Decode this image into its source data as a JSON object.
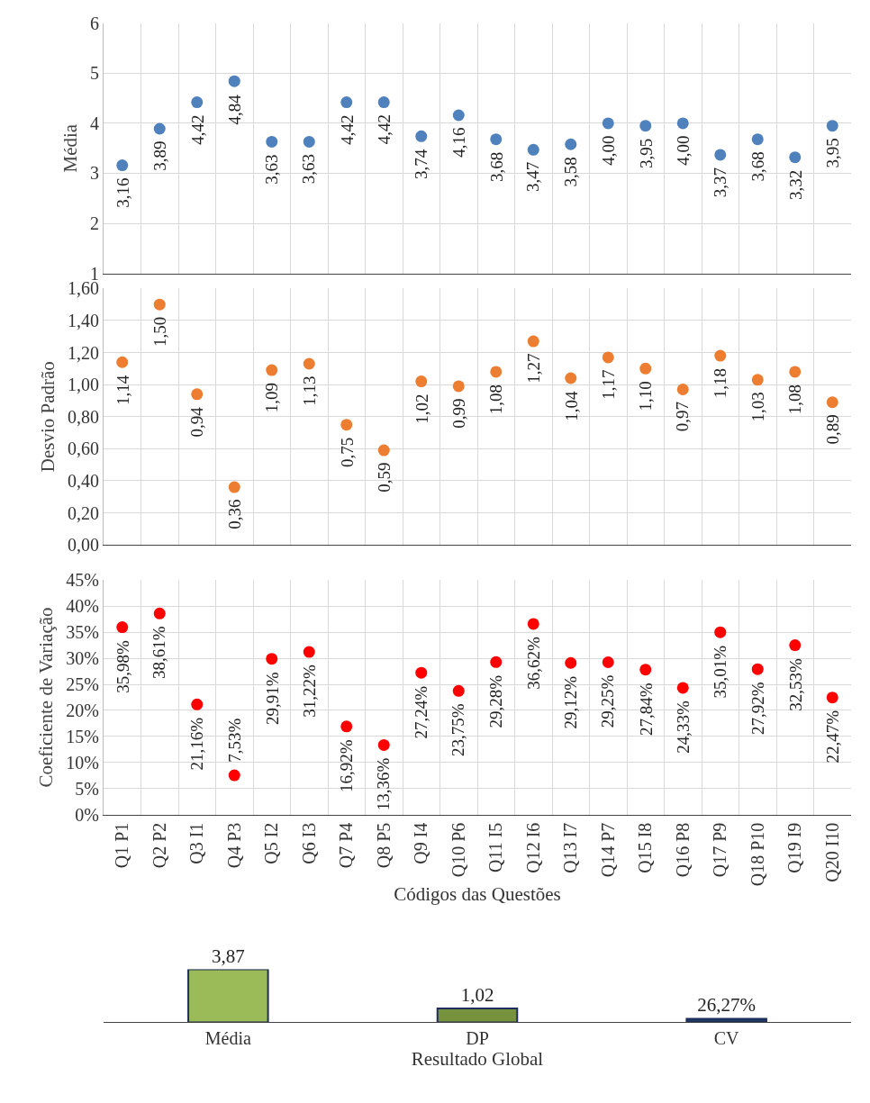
{
  "chart_data": [
    {
      "type": "scatter",
      "ylabel": "Média",
      "categories": [
        "Q1 P1",
        "Q2 P2",
        "Q3 I1",
        "Q4 P3",
        "Q5 I2",
        "Q6 I3",
        "Q7 P4",
        "Q8 P5",
        "Q9 I4",
        "Q10 P6",
        "Q11 I5",
        "Q12 I6",
        "Q13 I7",
        "Q14 P7",
        "Q15 I8",
        "Q16 P8",
        "Q17 P9",
        "Q18 P10",
        "Q19 I9",
        "Q20 I10"
      ],
      "series": [
        {
          "color": "#4f81bd",
          "values": [
            3.16,
            3.89,
            4.42,
            4.84,
            3.63,
            3.63,
            4.42,
            4.42,
            3.74,
            4.16,
            3.68,
            3.47,
            3.58,
            4.0,
            3.95,
            4.0,
            3.37,
            3.68,
            3.32,
            3.95
          ],
          "value_labels": [
            "3,16",
            "3,89",
            "4,42",
            "4,84",
            "3,63",
            "3,63",
            "4,42",
            "4,42",
            "3,74",
            "4,16",
            "3,68",
            "3,47",
            "3,58",
            "4,00",
            "3,95",
            "4,00",
            "3,37",
            "3,68",
            "3,32",
            "3,95"
          ]
        }
      ],
      "ylim": [
        1,
        6
      ],
      "yticks": [
        1,
        2,
        3,
        4,
        5,
        6
      ],
      "grid": true,
      "marker": "circle",
      "tick_labels": "y"
    },
    {
      "type": "scatter",
      "ylabel": "Desvio Padrão",
      "categories": [
        "Q1 P1",
        "Q2 P2",
        "Q3 I1",
        "Q4 P3",
        "Q5 I2",
        "Q6 I3",
        "Q7 P4",
        "Q8 P5",
        "Q9 I4",
        "Q10 P6",
        "Q11 I5",
        "Q12 I6",
        "Q13 I7",
        "Q14 P7",
        "Q15 I8",
        "Q16 P8",
        "Q17 P9",
        "Q18 P10",
        "Q19 I9",
        "Q20 I10"
      ],
      "series": [
        {
          "color": "#ed7d31",
          "values": [
            1.14,
            1.5,
            0.94,
            0.36,
            1.09,
            1.13,
            0.75,
            0.59,
            1.02,
            0.99,
            1.08,
            1.27,
            1.04,
            1.17,
            1.1,
            0.97,
            1.18,
            1.03,
            1.08,
            0.89
          ],
          "value_labels": [
            "1,14",
            "1,50",
            "0,94",
            "0,36",
            "1,09",
            "1,13",
            "0,75",
            "0,59",
            "1,02",
            "0,99",
            "1,08",
            "1,27",
            "1,04",
            "1,17",
            "1,10",
            "0,97",
            "1,18",
            "1,03",
            "1,08",
            "0,89"
          ]
        }
      ],
      "ylim": [
        0,
        1.6
      ],
      "yticks": [
        {
          "value": 0,
          "label": "0,00"
        },
        {
          "value": 0.2,
          "label": "0,20"
        },
        {
          "value": 0.4,
          "label": "0,40"
        },
        {
          "value": 0.6,
          "label": "0,60"
        },
        {
          "value": 0.8,
          "label": "0,80"
        },
        {
          "value": 1.0,
          "label": "1,00"
        },
        {
          "value": 1.2,
          "label": "1,20"
        },
        {
          "value": 1.4,
          "label": "1,40"
        },
        {
          "value": 1.6,
          "label": "1,60"
        }
      ],
      "grid": true,
      "marker": "circle",
      "tick_labels": "y"
    },
    {
      "type": "scatter",
      "ylabel": "Coeficiente de Variação",
      "xlabel": "Códigos das Questões",
      "categories": [
        "Q1 P1",
        "Q2 P2",
        "Q3 I1",
        "Q4 P3",
        "Q5 I2",
        "Q6 I3",
        "Q7 P4",
        "Q8 P5",
        "Q9 I4",
        "Q10 P6",
        "Q11 I5",
        "Q12 I6",
        "Q13 I7",
        "Q14 P7",
        "Q15 I8",
        "Q16 P8",
        "Q17 P9",
        "Q18 P10",
        "Q19 I9",
        "Q20 I10"
      ],
      "series": [
        {
          "color": "#ff0000",
          "values": [
            35.98,
            38.61,
            21.16,
            7.53,
            29.91,
            31.22,
            16.92,
            13.36,
            27.24,
            23.75,
            29.28,
            36.62,
            29.12,
            29.25,
            27.84,
            24.33,
            35.01,
            27.92,
            32.53,
            22.47
          ],
          "value_labels": [
            "35,98%",
            "38,61%",
            "21,16%",
            "7,53%",
            "29,91%",
            "31,22%",
            "16,92%",
            "13,36%",
            "27,24%",
            "23,75%",
            "29,28%",
            "36,62%",
            "29,12%",
            "29,25%",
            "27,84%",
            "24,33%",
            "35,01%",
            "27,92%",
            "32,53%",
            "22,47%"
          ]
        }
      ],
      "ylim": [
        0,
        45
      ],
      "yticks": [
        {
          "value": 0,
          "label": "0%"
        },
        {
          "value": 5,
          "label": "5%"
        },
        {
          "value": 10,
          "label": "10%"
        },
        {
          "value": 15,
          "label": "15%"
        },
        {
          "value": 20,
          "label": "20%"
        },
        {
          "value": 25,
          "label": "25%"
        },
        {
          "value": 30,
          "label": "30%"
        },
        {
          "value": 35,
          "label": "35%"
        },
        {
          "value": 40,
          "label": "40%"
        },
        {
          "value": 45,
          "label": "45%"
        }
      ],
      "grid": true,
      "marker": "circle"
    },
    {
      "type": "bar",
      "xlabel": "Resultado Global",
      "categories": [
        "Média",
        "DP",
        "CV"
      ],
      "values": [
        3.87,
        1.02,
        0.2627
      ],
      "colors": [
        "#9bbb59",
        "#76923c",
        "#1f3864"
      ],
      "value_labels": [
        "3,87",
        "1,02",
        "26,27%"
      ],
      "tick_labels": "x"
    }
  ]
}
